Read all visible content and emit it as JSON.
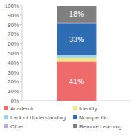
{
  "chart_data": {
    "type": "bar",
    "stacked": true,
    "data_labels": true,
    "grid": false,
    "categories": [
      null
    ],
    "series": [
      {
        "name": "Academic",
        "color": "#ef6b6b",
        "values": [
          41
        ],
        "value_labels": [
          "41%"
        ]
      },
      {
        "name": "Identity",
        "color": "#f2e68c",
        "values": [
          4
        ]
      },
      {
        "name": "Lack of Understanding",
        "color": "#a3d5e8",
        "values": [
          3
        ]
      },
      {
        "name": "Nonspecific",
        "color": "#2e6db4",
        "values": [
          33
        ],
        "value_labels": [
          "33%"
        ]
      },
      {
        "name": "Other",
        "color": "#b9acd8",
        "values": [
          1
        ]
      },
      {
        "name": "Remote Learning",
        "color": "#7f7f7f",
        "values": [
          18
        ],
        "value_labels": [
          "18%"
        ]
      }
    ],
    "ylim": [
      0,
      100
    ],
    "yticks": [
      {
        "value": 0,
        "label": "0%"
      },
      {
        "value": 10,
        "label": "10%"
      },
      {
        "value": 20,
        "label": "20%"
      },
      {
        "value": 30,
        "label": "30%"
      },
      {
        "value": 40,
        "label": "40%"
      },
      {
        "value": 50,
        "label": "50%"
      },
      {
        "value": 60,
        "label": "60%"
      },
      {
        "value": 70,
        "label": "70%"
      },
      {
        "value": 80,
        "label": "80%"
      },
      {
        "value": 90,
        "label": "90%"
      },
      {
        "value": 100,
        "label": "100%"
      }
    ]
  }
}
